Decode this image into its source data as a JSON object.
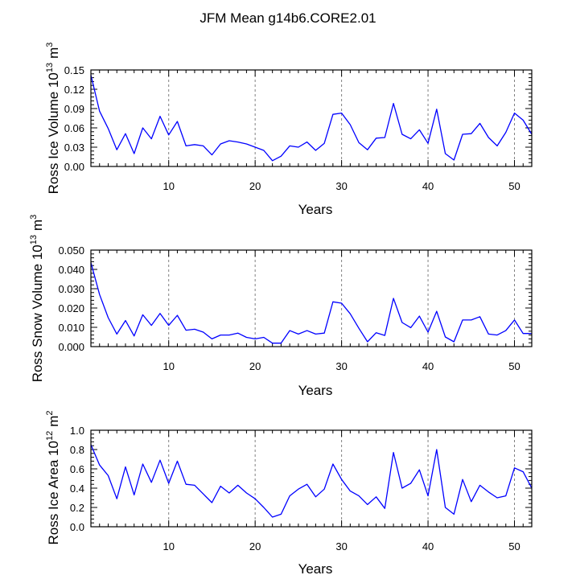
{
  "figure_title": "JFM Mean g14b6.CORE2.01",
  "colors": {
    "line": "#0000ff",
    "axis": "#000000",
    "grid": "#808080",
    "background": "#ffffff"
  },
  "chart_data": [
    {
      "type": "line",
      "name": "ice-volume",
      "ylabel": "Ross Ice Volume 10",
      "ylabel_exp": "13",
      "ylabel_unit": "m",
      "ylabel_unit_exp": "3",
      "xlabel": "Years",
      "xlim": [
        1,
        52
      ],
      "ylim": [
        0,
        0.15
      ],
      "yticks": [
        0,
        0.03,
        0.06,
        0.09,
        0.12,
        0.15
      ],
      "ytick_labels": [
        "0.00",
        "0.03",
        "0.06",
        "0.09",
        "0.12",
        "0.15"
      ],
      "xticks": [
        10,
        20,
        30,
        40,
        50
      ],
      "xtick_labels": [
        "10",
        "20",
        "30",
        "40",
        "50"
      ],
      "x": [
        1,
        2,
        3,
        4,
        5,
        6,
        7,
        8,
        9,
        10,
        11,
        12,
        13,
        14,
        15,
        16,
        17,
        18,
        19,
        20,
        21,
        22,
        23,
        24,
        25,
        26,
        27,
        28,
        29,
        30,
        31,
        32,
        33,
        34,
        35,
        36,
        37,
        38,
        39,
        40,
        41,
        42,
        43,
        44,
        45,
        46,
        47,
        48,
        49,
        50,
        51,
        52
      ],
      "values": [
        0.142,
        0.086,
        0.059,
        0.026,
        0.051,
        0.02,
        0.06,
        0.043,
        0.078,
        0.049,
        0.07,
        0.032,
        0.034,
        0.032,
        0.018,
        0.035,
        0.04,
        0.038,
        0.035,
        0.03,
        0.025,
        0.009,
        0.016,
        0.032,
        0.03,
        0.038,
        0.025,
        0.036,
        0.081,
        0.083,
        0.065,
        0.037,
        0.026,
        0.044,
        0.045,
        0.098,
        0.05,
        0.043,
        0.057,
        0.036,
        0.089,
        0.02,
        0.01,
        0.05,
        0.051,
        0.067,
        0.045,
        0.032,
        0.053,
        0.083,
        0.072,
        0.05
      ]
    },
    {
      "type": "line",
      "name": "snow-volume",
      "ylabel": "Ross Snow Volume 10",
      "ylabel_exp": "13",
      "ylabel_unit": "m",
      "ylabel_unit_exp": "3",
      "xlabel": "Years",
      "xlim": [
        1,
        52
      ],
      "ylim": [
        0,
        0.05
      ],
      "yticks": [
        0,
        0.01,
        0.02,
        0.03,
        0.04,
        0.05
      ],
      "ytick_labels": [
        "0.000",
        "0.010",
        "0.020",
        "0.030",
        "0.040",
        "0.050"
      ],
      "xticks": [
        10,
        20,
        30,
        40,
        50
      ],
      "xtick_labels": [
        "10",
        "20",
        "30",
        "40",
        "50"
      ],
      "x": [
        1,
        2,
        3,
        4,
        5,
        6,
        7,
        8,
        9,
        10,
        11,
        12,
        13,
        14,
        15,
        16,
        17,
        18,
        19,
        20,
        21,
        22,
        23,
        24,
        25,
        26,
        27,
        28,
        29,
        30,
        31,
        32,
        33,
        34,
        35,
        36,
        37,
        38,
        39,
        40,
        41,
        42,
        43,
        44,
        45,
        46,
        47,
        48,
        49,
        50,
        51,
        52
      ],
      "values": [
        0.0435,
        0.027,
        0.015,
        0.0065,
        0.0135,
        0.0055,
        0.0165,
        0.011,
        0.0172,
        0.011,
        0.0162,
        0.0085,
        0.009,
        0.0075,
        0.004,
        0.006,
        0.006,
        0.007,
        0.0048,
        0.004,
        0.0048,
        0.0018,
        0.0018,
        0.0083,
        0.0065,
        0.0083,
        0.0065,
        0.007,
        0.0232,
        0.0225,
        0.017,
        0.0095,
        0.0025,
        0.0072,
        0.0058,
        0.025,
        0.0125,
        0.0098,
        0.0158,
        0.0075,
        0.0183,
        0.005,
        0.0025,
        0.0138,
        0.0138,
        0.0155,
        0.0065,
        0.006,
        0.0083,
        0.0138,
        0.0068,
        0.0068
      ]
    },
    {
      "type": "line",
      "name": "ice-area",
      "ylabel": "Ross Ice Area 10",
      "ylabel_exp": "12",
      "ylabel_unit": "m",
      "ylabel_unit_exp": "2",
      "xlabel": "Years",
      "xlim": [
        1,
        52
      ],
      "ylim": [
        0,
        1.0
      ],
      "yticks": [
        0,
        0.2,
        0.4,
        0.6,
        0.8,
        1.0
      ],
      "ytick_labels": [
        "0.0",
        "0.2",
        "0.4",
        "0.6",
        "0.8",
        "1.0"
      ],
      "xticks": [
        10,
        20,
        30,
        40,
        50
      ],
      "xtick_labels": [
        "10",
        "20",
        "30",
        "40",
        "50"
      ],
      "x": [
        1,
        2,
        3,
        4,
        5,
        6,
        7,
        8,
        9,
        10,
        11,
        12,
        13,
        14,
        15,
        16,
        17,
        18,
        19,
        20,
        21,
        22,
        23,
        24,
        25,
        26,
        27,
        28,
        29,
        30,
        31,
        32,
        33,
        34,
        35,
        36,
        37,
        38,
        39,
        40,
        41,
        42,
        43,
        44,
        45,
        46,
        47,
        48,
        49,
        50,
        51,
        52
      ],
      "values": [
        0.85,
        0.64,
        0.53,
        0.29,
        0.62,
        0.33,
        0.65,
        0.46,
        0.69,
        0.45,
        0.68,
        0.44,
        0.43,
        0.34,
        0.25,
        0.42,
        0.35,
        0.43,
        0.35,
        0.29,
        0.2,
        0.1,
        0.13,
        0.32,
        0.39,
        0.44,
        0.31,
        0.39,
        0.65,
        0.49,
        0.37,
        0.32,
        0.23,
        0.31,
        0.19,
        0.77,
        0.4,
        0.45,
        0.59,
        0.32,
        0.8,
        0.2,
        0.13,
        0.49,
        0.26,
        0.43,
        0.36,
        0.3,
        0.32,
        0.61,
        0.57,
        0.4
      ]
    }
  ]
}
